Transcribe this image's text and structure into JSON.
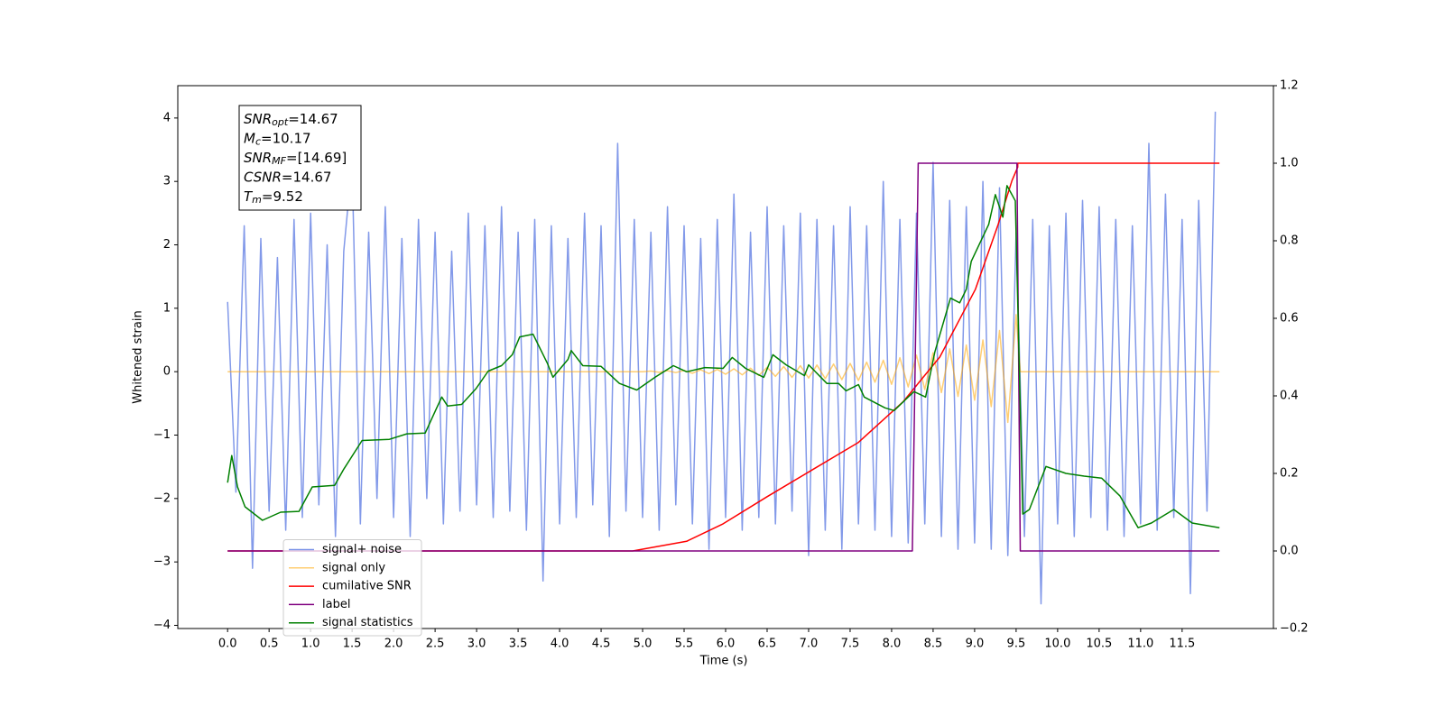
{
  "chart_data": {
    "type": "line",
    "xlabel": "Time (s)",
    "ylabel": "Whitened strain",
    "xlim": [
      -0.6,
      12.6
    ],
    "ylim": [
      -4.05,
      4.51
    ],
    "y2lim": [
      -0.2,
      1.2
    ],
    "xticks": [
      {
        "value": 0,
        "label": "0.0"
      },
      0.5,
      {
        "value": 1,
        "label": "1.0"
      },
      1.5,
      {
        "value": 2,
        "label": "2.0"
      },
      2.5,
      {
        "value": 3,
        "label": "3.0"
      },
      3.5,
      {
        "value": 4,
        "label": "4.0"
      },
      4.5,
      {
        "value": 5,
        "label": "5.0"
      },
      5.5,
      {
        "value": 6,
        "label": "6.0"
      },
      6.5,
      {
        "value": 7,
        "label": "7.0"
      },
      7.5,
      {
        "value": 8,
        "label": "8.0"
      },
      8.5,
      {
        "value": 9,
        "label": "9.0"
      },
      9.5,
      {
        "value": 10,
        "label": "10.0"
      },
      10.5,
      {
        "value": 11,
        "label": "11.0"
      },
      11.5
    ],
    "yticks": [
      {
        "value": -4,
        "label": "−4"
      },
      {
        "value": -3,
        "label": "−3"
      },
      {
        "value": -2,
        "label": "−2"
      },
      {
        "value": -1,
        "label": "−1"
      },
      0,
      1,
      2,
      3,
      4
    ],
    "y2ticks": [
      {
        "value": -0.2,
        "label": "−0.2"
      },
      {
        "value": 0,
        "label": "0.0"
      },
      0.2,
      0.4,
      0.6,
      0.8,
      {
        "value": 1,
        "label": "1.0"
      },
      1.2
    ],
    "grid": false,
    "legend": "lower left",
    "annotation": [
      {
        "base": "SNR",
        "sub": "opt",
        "text": "=14.67"
      },
      {
        "base": "M",
        "sub": "c",
        "text": "=10.17"
      },
      {
        "base": "SNR",
        "sub": "MF",
        "text": "=[14.69]"
      },
      {
        "base": "CSNR",
        "sub": "",
        "text": "=14.67"
      },
      {
        "base": "T",
        "sub": "m",
        "text": "=9.52"
      }
    ],
    "series": [
      {
        "name": "signal+ noise",
        "color": "#7b93e8",
        "axis": "y",
        "x": [
          0.0,
          0.1,
          0.2,
          0.3,
          0.4,
          0.5,
          0.6,
          0.7,
          0.8,
          0.9,
          1.0,
          1.1,
          1.2,
          1.3,
          1.4,
          1.5,
          1.6,
          1.7,
          1.8,
          1.9,
          2.0,
          2.1,
          2.2,
          2.3,
          2.4,
          2.5,
          2.6,
          2.7,
          2.8,
          2.9,
          3.0,
          3.1,
          3.2,
          3.3,
          3.4,
          3.5,
          3.6,
          3.7,
          3.8,
          3.9,
          4.0,
          4.1,
          4.2,
          4.3,
          4.4,
          4.5,
          4.6,
          4.7,
          4.8,
          4.9,
          5.0,
          5.1,
          5.2,
          5.3,
          5.4,
          5.5,
          5.6,
          5.7,
          5.8,
          5.9,
          6.0,
          6.1,
          6.2,
          6.3,
          6.4,
          6.5,
          6.6,
          6.7,
          6.8,
          6.9,
          7.0,
          7.1,
          7.2,
          7.3,
          7.4,
          7.5,
          7.6,
          7.7,
          7.8,
          7.9,
          8.0,
          8.1,
          8.2,
          8.3,
          8.4,
          8.5,
          8.6,
          8.7,
          8.8,
          8.9,
          9.0,
          9.1,
          9.2,
          9.3,
          9.4,
          9.5,
          9.6,
          9.7,
          9.8,
          9.9,
          10.0,
          10.1,
          10.2,
          10.3,
          10.4,
          10.5,
          10.6,
          10.7,
          10.8,
          10.9,
          11.0,
          11.1,
          11.2,
          11.3,
          11.4,
          11.5,
          11.6,
          11.7,
          11.8,
          11.9
        ],
        "values": [
          1.1,
          -1.9,
          2.3,
          -3.1,
          2.1,
          -2.2,
          1.8,
          -2.5,
          2.4,
          -2.3,
          2.5,
          -2.1,
          2.0,
          -2.6,
          1.9,
          3.3,
          -2.4,
          2.2,
          -2.0,
          2.6,
          -2.3,
          2.1,
          -2.6,
          2.4,
          -2.0,
          2.2,
          -2.4,
          1.9,
          -2.2,
          2.5,
          -2.1,
          2.3,
          -2.3,
          2.6,
          -2.2,
          2.2,
          -2.5,
          2.4,
          -3.3,
          2.3,
          -2.4,
          2.1,
          -2.3,
          2.5,
          -2.1,
          2.3,
          -2.6,
          3.6,
          -2.2,
          2.4,
          -2.3,
          2.2,
          -2.5,
          2.6,
          -2.1,
          2.3,
          -2.4,
          2.1,
          -2.8,
          2.4,
          -2.3,
          2.8,
          -2.5,
          2.2,
          -2.3,
          2.6,
          -2.4,
          2.3,
          -2.2,
          2.5,
          -2.9,
          2.4,
          -2.5,
          2.3,
          -2.8,
          2.6,
          -2.4,
          2.3,
          -2.5,
          3.0,
          -2.6,
          2.4,
          -2.7,
          2.5,
          -2.4,
          3.3,
          -2.6,
          2.7,
          -2.8,
          2.6,
          -2.7,
          3.0,
          -2.8,
          2.9,
          -2.9,
          2.2,
          -2.6,
          2.4,
          -3.66,
          2.3,
          -2.4,
          2.5,
          -2.6,
          2.7,
          -2.3,
          2.6,
          -2.5,
          2.4,
          -2.6,
          2.3,
          -2.4,
          3.6,
          -2.5,
          2.8,
          -2.3,
          2.4,
          -3.5,
          2.7,
          -2.2,
          4.1
        ]
      },
      {
        "name": "signal only",
        "color": "#ffa500",
        "axis": "y",
        "x": [
          0.0,
          5.0,
          5.1,
          5.2,
          5.3,
          5.4,
          5.5,
          5.6,
          5.7,
          5.8,
          5.9,
          6.0,
          6.1,
          6.2,
          6.3,
          6.4,
          6.5,
          6.6,
          6.7,
          6.8,
          6.9,
          7.0,
          7.1,
          7.2,
          7.3,
          7.4,
          7.5,
          7.6,
          7.7,
          7.8,
          7.9,
          8.0,
          8.1,
          8.2,
          8.3,
          8.4,
          8.5,
          8.6,
          8.7,
          8.8,
          8.9,
          9.0,
          9.1,
          9.2,
          9.3,
          9.4,
          9.5,
          9.55,
          11.95
        ],
        "values": [
          0,
          0,
          0.01,
          -0.01,
          0.015,
          -0.015,
          0.02,
          -0.025,
          0.03,
          -0.03,
          0.035,
          -0.04,
          0.045,
          -0.05,
          0.055,
          -0.06,
          0.07,
          -0.075,
          0.08,
          -0.09,
          0.095,
          -0.1,
          0.105,
          -0.11,
          0.12,
          -0.125,
          0.13,
          -0.14,
          0.15,
          -0.165,
          0.18,
          -0.2,
          0.22,
          -0.24,
          0.26,
          -0.28,
          0.3,
          -0.33,
          0.36,
          -0.39,
          0.42,
          -0.45,
          0.5,
          -0.55,
          0.65,
          -0.8,
          0.9,
          0,
          0
        ]
      },
      {
        "name": "cumilative SNR",
        "color": "#ff0000",
        "axis": "y2",
        "x": [
          0.0,
          4.88,
          5.53,
          5.97,
          6.5,
          7.05,
          7.6,
          8.14,
          8.58,
          9.01,
          9.28,
          9.45,
          9.52,
          9.52,
          11.95
        ],
        "values": [
          0,
          0,
          0.025,
          0.07,
          0.14,
          0.21,
          0.28,
          0.385,
          0.5,
          0.675,
          0.84,
          0.955,
          0.99,
          1.0,
          1.0
        ]
      },
      {
        "name": "label",
        "color": "#800080",
        "axis": "y2",
        "x": [
          0.0,
          8.25,
          8.32,
          9.51,
          9.55,
          11.95
        ],
        "values": [
          0,
          0,
          1,
          1,
          0,
          0
        ]
      },
      {
        "name": "signal statistics",
        "color": "#008000",
        "axis": "y2",
        "x": [
          0.0,
          0.05,
          0.12,
          0.21,
          0.42,
          0.64,
          0.86,
          1.02,
          1.29,
          1.4,
          1.62,
          1.95,
          2.16,
          2.38,
          2.52,
          2.58,
          2.65,
          2.82,
          2.99,
          3.14,
          3.3,
          3.43,
          3.52,
          3.68,
          3.85,
          3.92,
          4.1,
          4.14,
          4.28,
          4.5,
          4.72,
          4.93,
          5.15,
          5.37,
          5.53,
          5.75,
          5.97,
          6.08,
          6.24,
          6.46,
          6.57,
          6.73,
          6.95,
          7.0,
          7.22,
          7.36,
          7.45,
          7.6,
          7.67,
          7.92,
          8.03,
          8.2,
          8.27,
          8.41,
          8.52,
          8.71,
          8.82,
          8.9,
          8.96,
          9.17,
          9.25,
          9.34,
          9.39,
          9.49,
          9.58,
          9.66,
          9.86,
          10.1,
          10.32,
          10.53,
          10.75,
          10.97,
          11.13,
          11.4,
          11.62,
          11.95
        ],
        "values": [
          0.176,
          0.246,
          0.165,
          0.114,
          0.079,
          0.1,
          0.102,
          0.165,
          0.169,
          0.211,
          0.285,
          0.288,
          0.302,
          0.304,
          0.369,
          0.397,
          0.374,
          0.378,
          0.418,
          0.464,
          0.478,
          0.506,
          0.552,
          0.559,
          0.485,
          0.448,
          0.494,
          0.517,
          0.478,
          0.476,
          0.432,
          0.415,
          0.448,
          0.478,
          0.462,
          0.473,
          0.471,
          0.499,
          0.471,
          0.448,
          0.506,
          0.48,
          0.452,
          0.48,
          0.432,
          0.432,
          0.413,
          0.429,
          0.397,
          0.369,
          0.362,
          0.397,
          0.411,
          0.397,
          0.513,
          0.652,
          0.64,
          0.675,
          0.747,
          0.842,
          0.919,
          0.861,
          0.942,
          0.903,
          0.095,
          0.107,
          0.218,
          0.2,
          0.193,
          0.188,
          0.142,
          0.06,
          0.072,
          0.107,
          0.072,
          0.06
        ]
      }
    ]
  }
}
